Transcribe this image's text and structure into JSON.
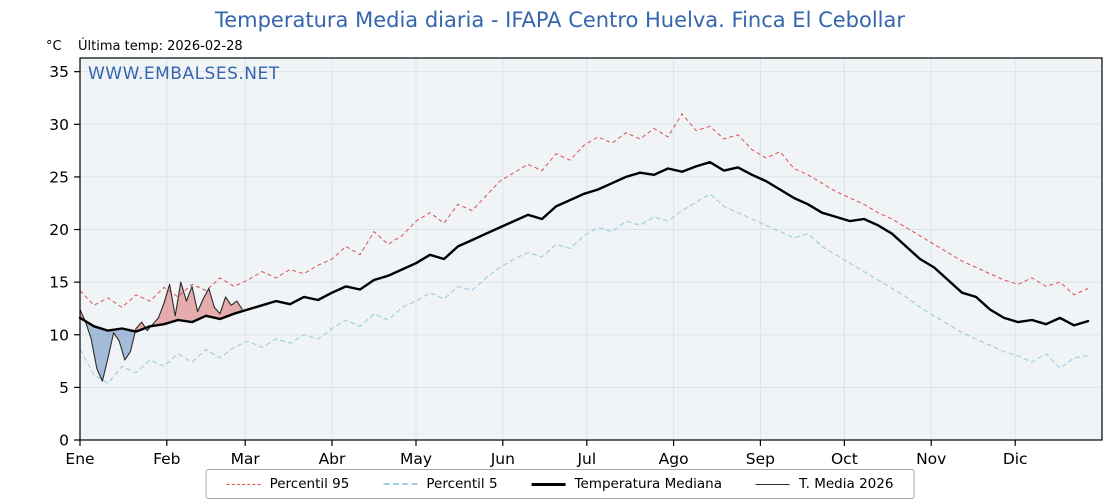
{
  "header": {
    "title": "Temperatura Media diaria - IFAPA Centro Huelva. Finca El Cebollar",
    "unit_label": "°C",
    "last_temp": "Última temp: 2026-02-28",
    "watermark": "WWW.EMBALSES.NET"
  },
  "colors": {
    "title": "#3565ad",
    "watermark": "#3565ad",
    "panel_bg": "#f0f4f7",
    "grid": "#dbe3ea",
    "axis": "#000000",
    "fill_above": "rgba(217,83,79,0.45)",
    "fill_below": "rgba(70,120,180,0.45)"
  },
  "legend": {
    "items": [
      {
        "label": "Percentil 95"
      },
      {
        "label": "Percentil 5"
      },
      {
        "label": "Temperatura Mediana"
      },
      {
        "label": "T. Media 2026"
      }
    ]
  },
  "chart_data": {
    "type": "line",
    "title": "Temperatura Media diaria - IFAPA Centro Huelva. Finca El Cebollar",
    "xlabel": "",
    "ylabel": "°C",
    "xlim": [
      1,
      366
    ],
    "ylim": [
      0,
      36.3
    ],
    "yticks": [
      0,
      5,
      10,
      15,
      20,
      25,
      30,
      35
    ],
    "grid": true,
    "legend_position": "bottom",
    "x_unit": "day_of_year",
    "month_ticks": {
      "days": [
        1,
        32,
        60,
        91,
        121,
        152,
        182,
        213,
        244,
        274,
        305,
        335
      ],
      "labels": [
        "Ene",
        "Feb",
        "Mar",
        "Abr",
        "May",
        "Jun",
        "Jul",
        "Ago",
        "Sep",
        "Oct",
        "Nov",
        "Dic"
      ]
    },
    "series": [
      {
        "name": "Percentil 95",
        "style": "dashed",
        "color": "#d9534f",
        "width": 1,
        "x_start": 1,
        "x_step": 5,
        "y": [
          14.2,
          12.8,
          13.5,
          12.6,
          13.8,
          13.2,
          14.5,
          13.6,
          14.8,
          14.2,
          15.4,
          14.6,
          15.2,
          16.0,
          15.4,
          16.2,
          15.8,
          16.6,
          17.2,
          18.4,
          17.6,
          19.8,
          18.6,
          19.4,
          20.8,
          21.6,
          20.6,
          22.4,
          21.8,
          23.2,
          24.6,
          25.4,
          26.2,
          25.6,
          27.2,
          26.6,
          28.0,
          28.8,
          28.2,
          29.2,
          28.6,
          29.6,
          28.8,
          31.0,
          29.4,
          29.8,
          28.6,
          29.0,
          27.6,
          26.8,
          27.4,
          25.8,
          25.2,
          24.4,
          23.6,
          23.0,
          22.4,
          21.6,
          21.0,
          20.2,
          19.4,
          18.6,
          17.8,
          17.0,
          16.4,
          15.8,
          15.2,
          14.8,
          15.4,
          14.6,
          15.0,
          13.8,
          14.4
        ]
      },
      {
        "name": "Percentil 5",
        "style": "dashed",
        "color": "#a3cfe3",
        "width": 1.2,
        "x_start": 1,
        "x_step": 5,
        "y": [
          8.6,
          6.2,
          5.4,
          7.0,
          6.4,
          7.6,
          7.0,
          8.2,
          7.4,
          8.6,
          7.8,
          8.8,
          9.4,
          8.8,
          9.6,
          9.2,
          10.0,
          9.6,
          10.6,
          11.4,
          10.8,
          12.0,
          11.4,
          12.6,
          13.2,
          14.0,
          13.4,
          14.6,
          14.2,
          15.4,
          16.4,
          17.2,
          17.8,
          17.4,
          18.6,
          18.2,
          19.4,
          20.2,
          19.8,
          20.8,
          20.4,
          21.2,
          20.8,
          21.8,
          22.6,
          23.4,
          22.2,
          21.6,
          21.0,
          20.4,
          19.8,
          19.2,
          19.6,
          18.4,
          17.6,
          16.8,
          16.0,
          15.2,
          14.4,
          13.6,
          12.6,
          11.8,
          11.0,
          10.2,
          9.6,
          9.0,
          8.4,
          8.0,
          7.4,
          8.2,
          6.8,
          7.8,
          8.0
        ]
      },
      {
        "name": "Temperatura Mediana",
        "style": "solid",
        "color": "#000000",
        "width": 2.4,
        "x_start": 1,
        "x_step": 5,
        "y": [
          11.6,
          10.8,
          10.4,
          10.6,
          10.3,
          10.8,
          11.0,
          11.4,
          11.2,
          11.8,
          11.5,
          12.0,
          12.4,
          12.8,
          13.2,
          12.9,
          13.6,
          13.3,
          14.0,
          14.6,
          14.3,
          15.2,
          15.6,
          16.2,
          16.8,
          17.6,
          17.2,
          18.4,
          19.0,
          19.6,
          20.2,
          20.8,
          21.4,
          21.0,
          22.2,
          22.8,
          23.4,
          23.8,
          24.4,
          25.0,
          25.4,
          25.2,
          25.8,
          25.5,
          26.0,
          26.4,
          25.6,
          25.9,
          25.2,
          24.6,
          23.8,
          23.0,
          22.4,
          21.6,
          21.2,
          20.8,
          21.0,
          20.4,
          19.6,
          18.4,
          17.2,
          16.4,
          15.2,
          14.0,
          13.6,
          12.4,
          11.6,
          11.2,
          11.4,
          11.0,
          11.6,
          10.9,
          11.3
        ]
      },
      {
        "name": "T. Media 2026",
        "style": "solid",
        "color": "#2a2a2a",
        "width": 1.1,
        "x_start": 1,
        "x_step": 2,
        "y": [
          12.4,
          11.2,
          9.6,
          6.8,
          5.6,
          7.8,
          10.2,
          9.4,
          7.6,
          8.4,
          10.6,
          11.2,
          10.4,
          11.0,
          11.6,
          13.0,
          14.8,
          11.8,
          15.0,
          13.2,
          14.6,
          12.2,
          13.4,
          14.4,
          12.6,
          12.0,
          13.6,
          12.8,
          13.2,
          12.4
        ]
      }
    ],
    "fills": {
      "description": "T. Media 2026 vs Temperatura Mediana",
      "above_color": "rgba(217,83,79,0.45)",
      "below_color": "rgba(70,120,180,0.45)"
    }
  }
}
